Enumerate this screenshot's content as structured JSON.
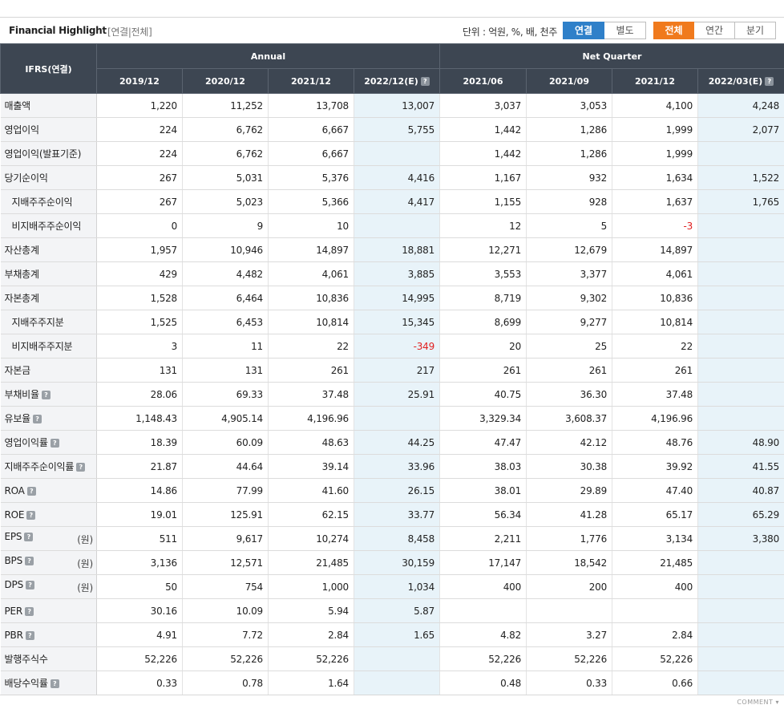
{
  "header": {
    "title": "Financial Highlight",
    "subtitle": "[연결|전체]",
    "unit": "단위 : 억원, %, 배, 천주",
    "toggle_consolidation": [
      "연결",
      "별도"
    ],
    "toggle_period": [
      "전체",
      "연간",
      "분기"
    ]
  },
  "table": {
    "corner": "IFRS(연결)",
    "groups": [
      "Annual",
      "Net Quarter"
    ],
    "columns": [
      "2019/12",
      "2020/12",
      "2021/12",
      "2022/12(E)",
      "2021/06",
      "2021/09",
      "2021/12",
      "2022/03(E)"
    ],
    "rows": [
      {
        "label": "매출액",
        "indent": false,
        "help": false,
        "unit": "",
        "values": [
          "1,220",
          "11,252",
          "13,708",
          "13,007",
          "3,037",
          "3,053",
          "4,100",
          "4,248"
        ]
      },
      {
        "label": "영업이익",
        "indent": false,
        "help": false,
        "unit": "",
        "values": [
          "224",
          "6,762",
          "6,667",
          "5,755",
          "1,442",
          "1,286",
          "1,999",
          "2,077"
        ]
      },
      {
        "label": "영업이익(발표기준)",
        "indent": false,
        "help": false,
        "unit": "",
        "values": [
          "224",
          "6,762",
          "6,667",
          "",
          "1,442",
          "1,286",
          "1,999",
          ""
        ]
      },
      {
        "label": "당기순이익",
        "indent": false,
        "help": false,
        "unit": "",
        "values": [
          "267",
          "5,031",
          "5,376",
          "4,416",
          "1,167",
          "932",
          "1,634",
          "1,522"
        ]
      },
      {
        "label": "지배주주순이익",
        "indent": true,
        "help": false,
        "unit": "",
        "values": [
          "267",
          "5,023",
          "5,366",
          "4,417",
          "1,155",
          "928",
          "1,637",
          "1,765"
        ]
      },
      {
        "label": "비지배주주순이익",
        "indent": true,
        "help": false,
        "unit": "",
        "values": [
          "0",
          "9",
          "10",
          "",
          "12",
          "5",
          "-3",
          ""
        ]
      },
      {
        "label": "자산총계",
        "indent": false,
        "help": false,
        "unit": "",
        "values": [
          "1,957",
          "10,946",
          "14,897",
          "18,881",
          "12,271",
          "12,679",
          "14,897",
          ""
        ]
      },
      {
        "label": "부채총계",
        "indent": false,
        "help": false,
        "unit": "",
        "values": [
          "429",
          "4,482",
          "4,061",
          "3,885",
          "3,553",
          "3,377",
          "4,061",
          ""
        ]
      },
      {
        "label": "자본총계",
        "indent": false,
        "help": false,
        "unit": "",
        "values": [
          "1,528",
          "6,464",
          "10,836",
          "14,995",
          "8,719",
          "9,302",
          "10,836",
          ""
        ]
      },
      {
        "label": "지배주주지분",
        "indent": true,
        "help": false,
        "unit": "",
        "values": [
          "1,525",
          "6,453",
          "10,814",
          "15,345",
          "8,699",
          "9,277",
          "10,814",
          ""
        ]
      },
      {
        "label": "비지배주주지분",
        "indent": true,
        "help": false,
        "unit": "",
        "values": [
          "3",
          "11",
          "22",
          "-349",
          "20",
          "25",
          "22",
          ""
        ]
      },
      {
        "label": "자본금",
        "indent": false,
        "help": false,
        "unit": "",
        "values": [
          "131",
          "131",
          "261",
          "217",
          "261",
          "261",
          "261",
          ""
        ]
      },
      {
        "label": "부채비율",
        "indent": false,
        "help": true,
        "unit": "",
        "values": [
          "28.06",
          "69.33",
          "37.48",
          "25.91",
          "40.75",
          "36.30",
          "37.48",
          ""
        ]
      },
      {
        "label": "유보율",
        "indent": false,
        "help": true,
        "unit": "",
        "values": [
          "1,148.43",
          "4,905.14",
          "4,196.96",
          "",
          "3,329.34",
          "3,608.37",
          "4,196.96",
          ""
        ]
      },
      {
        "label": "영업이익률",
        "indent": false,
        "help": true,
        "unit": "",
        "values": [
          "18.39",
          "60.09",
          "48.63",
          "44.25",
          "47.47",
          "42.12",
          "48.76",
          "48.90"
        ]
      },
      {
        "label": "지배주주순이익률",
        "indent": false,
        "help": true,
        "unit": "",
        "values": [
          "21.87",
          "44.64",
          "39.14",
          "33.96",
          "38.03",
          "30.38",
          "39.92",
          "41.55"
        ]
      },
      {
        "label": "ROA",
        "indent": false,
        "help": true,
        "unit": "",
        "values": [
          "14.86",
          "77.99",
          "41.60",
          "26.15",
          "38.01",
          "29.89",
          "47.40",
          "40.87"
        ]
      },
      {
        "label": "ROE",
        "indent": false,
        "help": true,
        "unit": "",
        "values": [
          "19.01",
          "125.91",
          "62.15",
          "33.77",
          "56.34",
          "41.28",
          "65.17",
          "65.29"
        ]
      },
      {
        "label": "EPS",
        "indent": false,
        "help": true,
        "unit": "(원)",
        "values": [
          "511",
          "9,617",
          "10,274",
          "8,458",
          "2,211",
          "1,776",
          "3,134",
          "3,380"
        ]
      },
      {
        "label": "BPS",
        "indent": false,
        "help": true,
        "unit": "(원)",
        "values": [
          "3,136",
          "12,571",
          "21,485",
          "30,159",
          "17,147",
          "18,542",
          "21,485",
          ""
        ]
      },
      {
        "label": "DPS",
        "indent": false,
        "help": true,
        "unit": "(원)",
        "values": [
          "50",
          "754",
          "1,000",
          "1,034",
          "400",
          "200",
          "400",
          ""
        ]
      },
      {
        "label": "PER",
        "indent": false,
        "help": true,
        "unit": "",
        "values": [
          "30.16",
          "10.09",
          "5.94",
          "5.87",
          "",
          "",
          "",
          ""
        ]
      },
      {
        "label": "PBR",
        "indent": false,
        "help": true,
        "unit": "",
        "values": [
          "4.91",
          "7.72",
          "2.84",
          "1.65",
          "4.82",
          "3.27",
          "2.84",
          ""
        ]
      },
      {
        "label": "발행주식수",
        "indent": false,
        "help": false,
        "unit": "",
        "values": [
          "52,226",
          "52,226",
          "52,226",
          "",
          "52,226",
          "52,226",
          "52,226",
          ""
        ]
      },
      {
        "label": "배당수익률",
        "indent": false,
        "help": true,
        "unit": "",
        "values": [
          "0.33",
          "0.78",
          "1.64",
          "",
          "0.48",
          "0.33",
          "0.66",
          ""
        ]
      }
    ]
  },
  "footer": {
    "comment_label": "COMMENT"
  },
  "colors": {
    "header_bg": "#3d4652",
    "estimate_bg": "#e8f3f9",
    "label_bg": "#f3f4f6",
    "active_blue": "#2f80c9",
    "active_orange": "#f07a1d",
    "negative": "#e02020"
  }
}
